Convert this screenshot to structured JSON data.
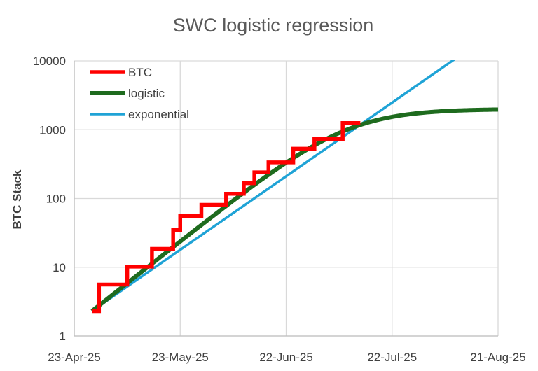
{
  "chart_data": {
    "type": "line",
    "title": "SWC logistic regression",
    "ylabel": "BTC Stack",
    "xlabel": "",
    "y_scale": "log",
    "ylim": [
      1,
      10000
    ],
    "y_ticks": [
      "1",
      "10",
      "100",
      "1000",
      "10000"
    ],
    "xlim": [
      "2025-04-23",
      "2025-08-21"
    ],
    "x_ticks": [
      "23-Apr-25",
      "23-May-25",
      "22-Jun-25",
      "22-Jul-25",
      "21-Aug-25"
    ],
    "grid": true,
    "legend_position": "top-left",
    "series": [
      {
        "name": "BTC",
        "color": "#ff0000",
        "style": "step",
        "points": [
          [
            "2025-04-28",
            2.3
          ],
          [
            "2025-04-30",
            2.3
          ],
          [
            "2025-04-30",
            5.6
          ],
          [
            "2025-05-08",
            5.6
          ],
          [
            "2025-05-08",
            10.2
          ],
          [
            "2025-05-15",
            10.2
          ],
          [
            "2025-05-15",
            18.5
          ],
          [
            "2025-05-21",
            18.5
          ],
          [
            "2025-05-21",
            35
          ],
          [
            "2025-05-23",
            35
          ],
          [
            "2025-05-23",
            56
          ],
          [
            "2025-05-29",
            56
          ],
          [
            "2025-05-29",
            81
          ],
          [
            "2025-06-05",
            81
          ],
          [
            "2025-06-05",
            117
          ],
          [
            "2025-06-10",
            117
          ],
          [
            "2025-06-10",
            167
          ],
          [
            "2025-06-13",
            167
          ],
          [
            "2025-06-13",
            240
          ],
          [
            "2025-06-17",
            240
          ],
          [
            "2025-06-17",
            335
          ],
          [
            "2025-06-24",
            335
          ],
          [
            "2025-06-24",
            530
          ],
          [
            "2025-06-30",
            530
          ],
          [
            "2025-06-30",
            730
          ],
          [
            "2025-07-08",
            730
          ],
          [
            "2025-07-08",
            1250
          ],
          [
            "2025-07-13",
            1250
          ]
        ]
      },
      {
        "name": "logistic",
        "color": "#1e6b1e",
        "style": "logistic",
        "params": {
          "K": 2000,
          "N0": 2.3,
          "r_per_day": 0.0937,
          "start": "2025-04-28",
          "end": "2025-08-21"
        }
      },
      {
        "name": "exponential",
        "color": "#1fa3d6",
        "style": "exponential",
        "points": [
          [
            "2025-04-28",
            2.3
          ],
          [
            "2025-08-08",
            10000
          ]
        ]
      }
    ]
  }
}
